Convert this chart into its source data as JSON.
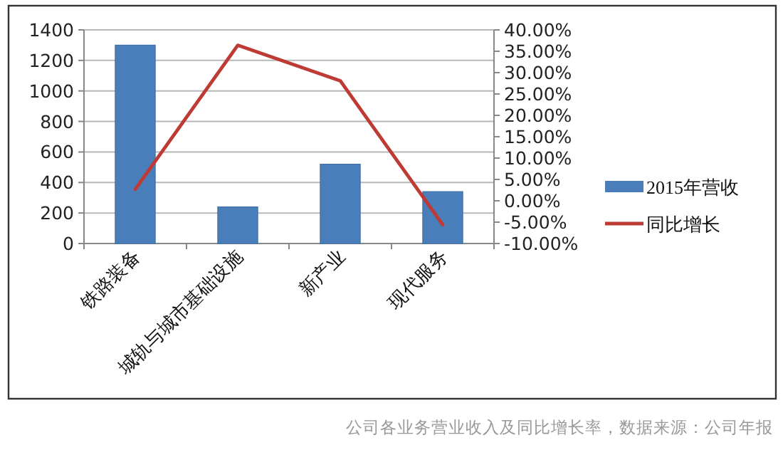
{
  "chart_data": {
    "type": "bar",
    "categories": [
      "铁路装备",
      "城轨与城市基础设施",
      "新产业",
      "现代服务"
    ],
    "series": [
      {
        "name": "2015年营收",
        "color": "#4a7ebb",
        "values": [
          1300,
          240,
          520,
          340
        ]
      },
      {
        "name": "同比增长",
        "type": "line",
        "axis": "y2",
        "color": "#be3a34",
        "values": [
          2.7,
          36.4,
          28.1,
          -5.6
        ]
      }
    ],
    "ylim": [
      0,
      1400
    ],
    "yticks": [
      0,
      200,
      400,
      600,
      800,
      1000,
      1200,
      1400
    ],
    "y2lim": [
      -10,
      40
    ],
    "y2ticks": [
      {
        "value": -10,
        "label": "-10.00%"
      },
      {
        "value": -5,
        "label": "-5.00%"
      },
      {
        "value": 0,
        "label": "0.00%"
      },
      {
        "value": 5,
        "label": "5.00%"
      },
      {
        "value": 10,
        "label": "10.00%"
      },
      {
        "value": 15,
        "label": "15.00%"
      },
      {
        "value": 20,
        "label": "20.00%"
      },
      {
        "value": 25,
        "label": "25.00%"
      },
      {
        "value": 30,
        "label": "30.00%"
      },
      {
        "value": 35,
        "label": "35.00%"
      },
      {
        "value": 40,
        "label": "40.00%"
      }
    ],
    "grid": "y",
    "legend": "right",
    "annotations": [
      "公司各业务营业收入及同比增长率，数据来源：公司年报"
    ]
  }
}
